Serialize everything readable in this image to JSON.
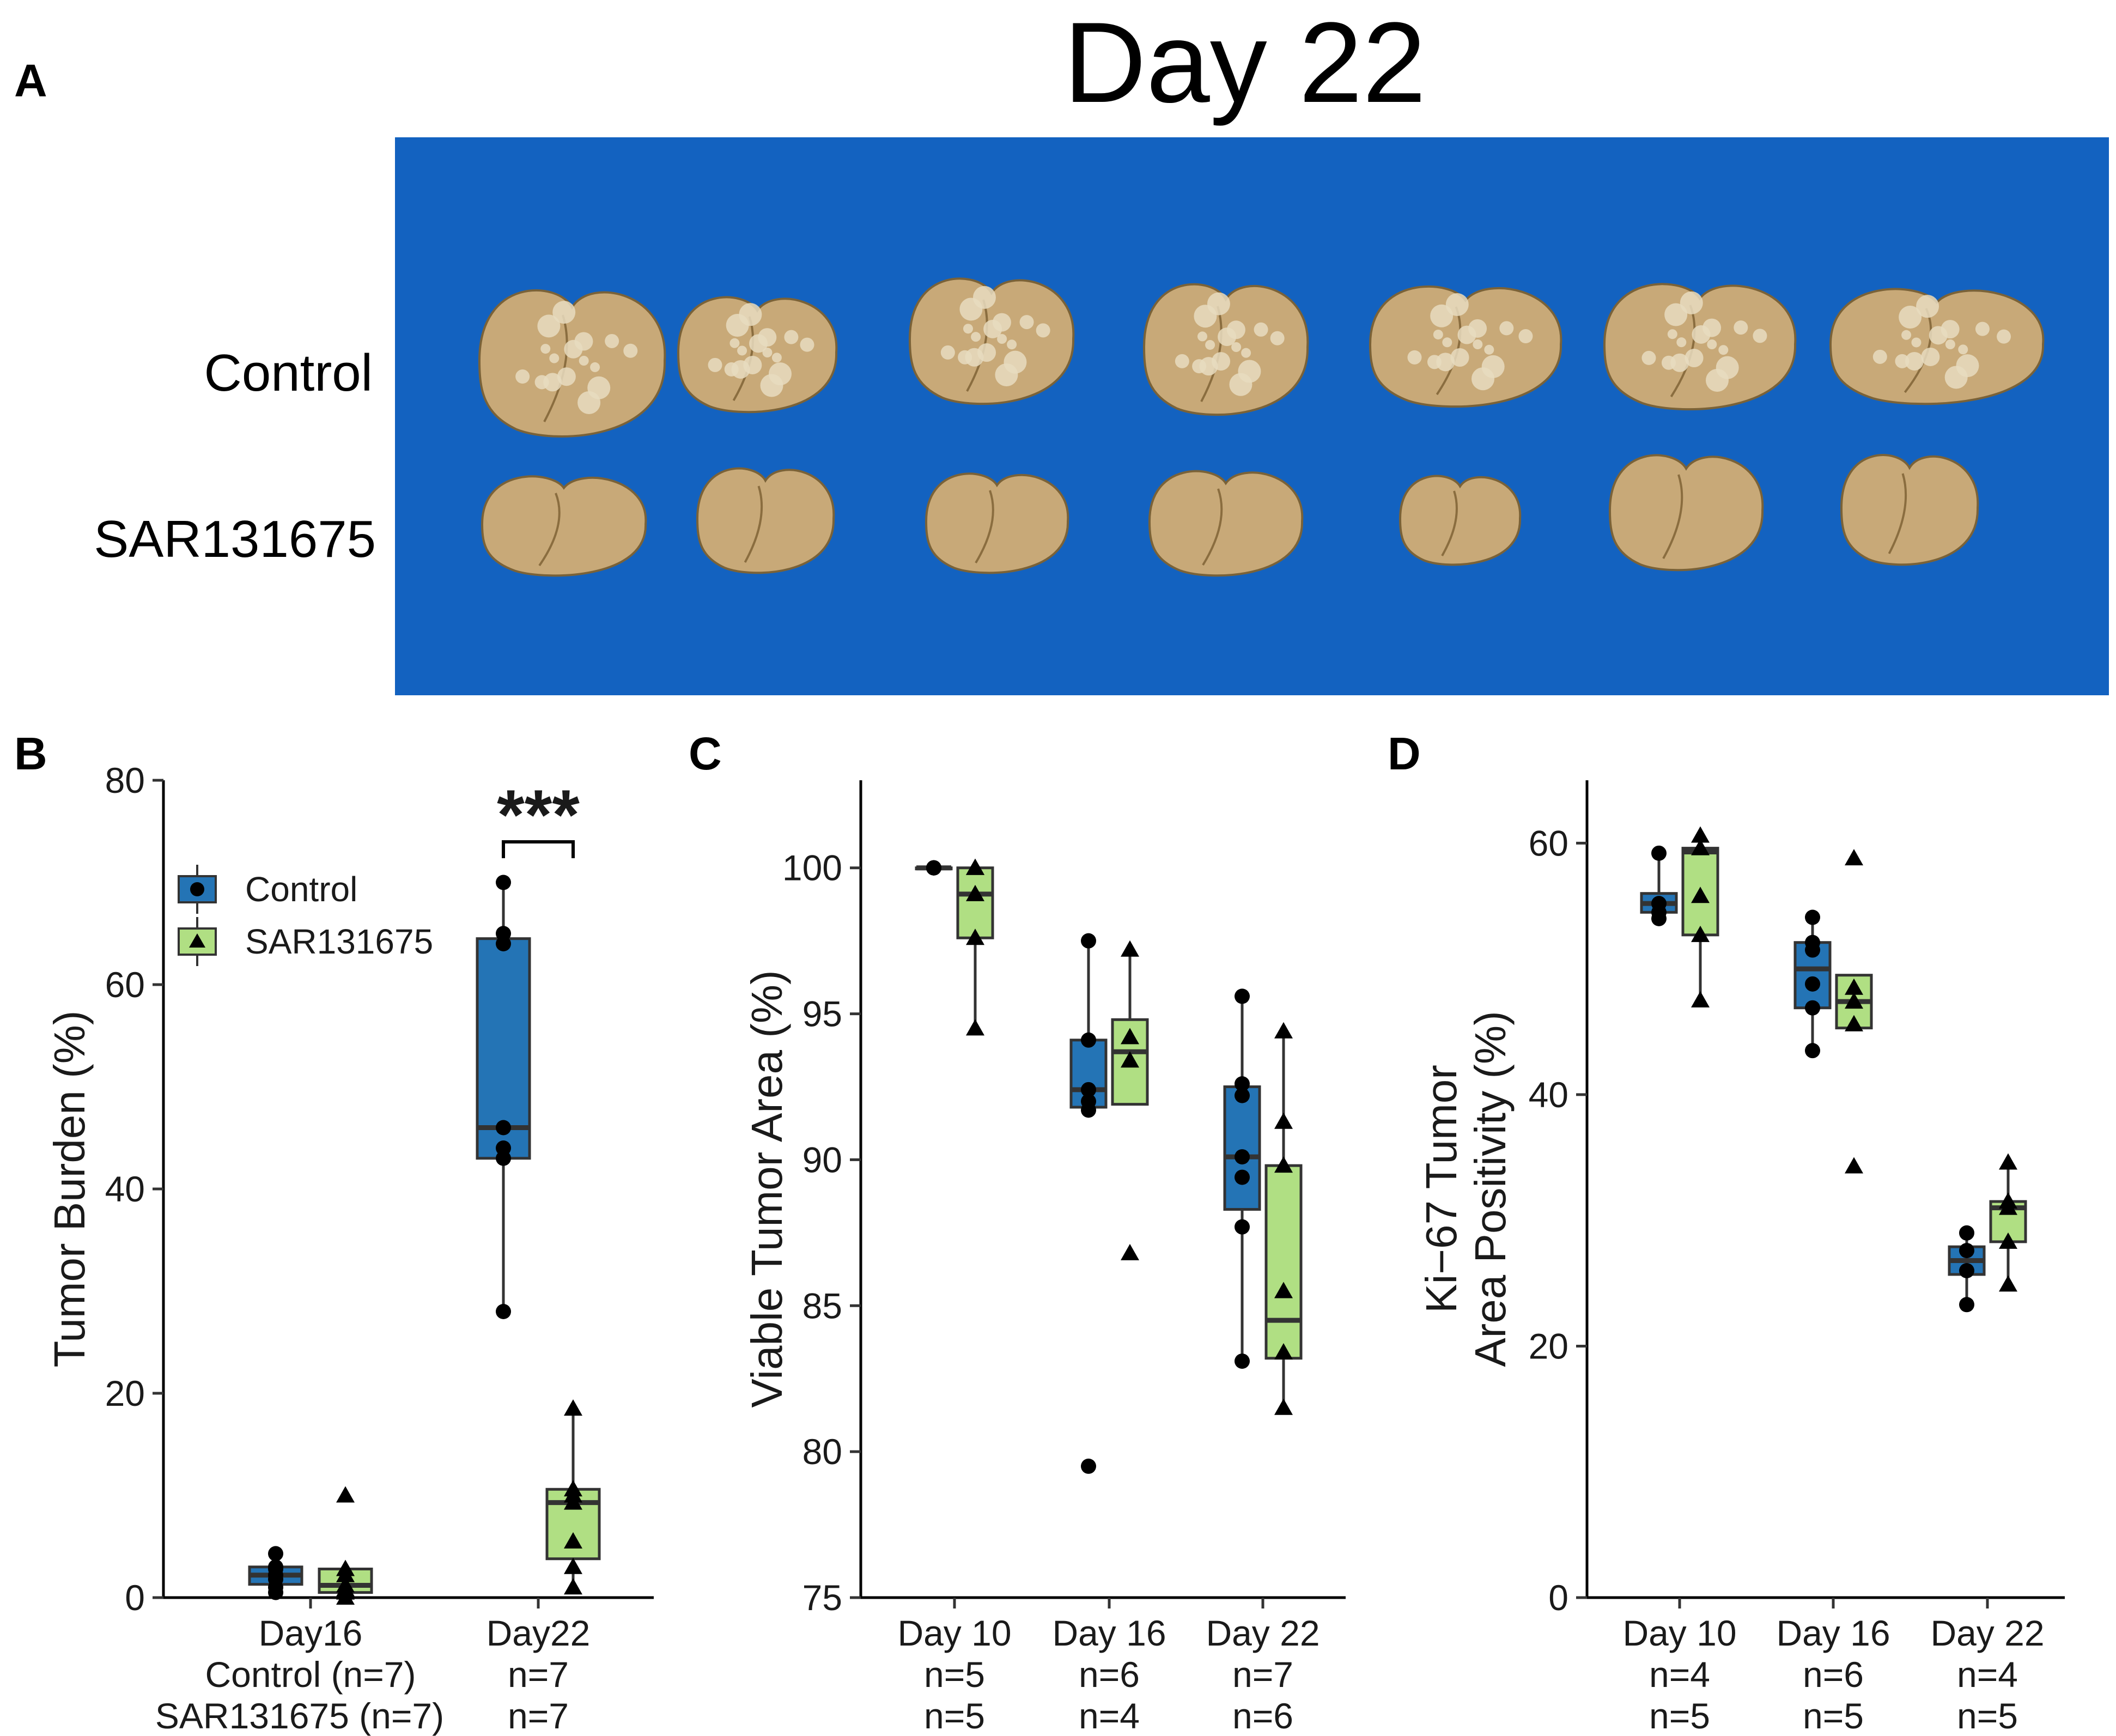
{
  "figure": {
    "title": "Day 22",
    "panel_labels": {
      "a": "A",
      "b": "B",
      "c": "C",
      "d": "D"
    },
    "photo_rows": [
      "Control",
      "SAR131675"
    ]
  },
  "colors": {
    "control": "#2474b5",
    "sar": "#b0df83",
    "photo_bg": "#1362c0",
    "liver": "#c8a978",
    "nodule": "#e7dcc0"
  },
  "chart_data": [
    {
      "type": "box",
      "panel": "B",
      "ylabel": "Tumor Burden (%)",
      "ylim": [
        0,
        80
      ],
      "yticks": [
        0,
        20,
        40,
        60,
        80
      ],
      "legend": {
        "placement": "top-left",
        "entries": [
          "Control",
          "SAR131675"
        ]
      },
      "groups": [
        "Day16",
        "Day22"
      ],
      "n_row_labels": [
        "Control (n=7)",
        "SAR131675 (n=7)"
      ],
      "n_labels": [
        [
          "n=7",
          "n=7"
        ]
      ],
      "annotation": "***",
      "series": [
        {
          "name": "Control",
          "marker": "circle",
          "boxes": [
            {
              "q1": 1.3,
              "median": 2.2,
              "q3": 3.0,
              "lo": 0.5,
              "hi": 4.3,
              "points": [
                0.5,
                1.0,
                1.8,
                2.2,
                2.8,
                3.0,
                4.3
              ]
            },
            {
              "q1": 43,
              "median": 46,
              "q3": 64.5,
              "lo": 28,
              "hi": 70,
              "points": [
                28,
                43,
                44,
                46,
                64,
                65,
                70
              ]
            }
          ]
        },
        {
          "name": "SAR131675",
          "marker": "triangle",
          "boxes": [
            {
              "q1": 0.5,
              "median": 1.2,
              "q3": 2.8,
              "lo": 0,
              "hi": 2.8,
              "points": [
                0,
                0.5,
                0.8,
                1.2,
                2.2,
                2.8,
                10.0
              ]
            },
            {
              "q1": 3.8,
              "median": 9.3,
              "q3": 10.6,
              "lo": 1,
              "hi": 18.5,
              "points": [
                1,
                3,
                5.5,
                9.3,
                10,
                10.6,
                18.5
              ]
            }
          ]
        }
      ]
    },
    {
      "type": "box",
      "panel": "C",
      "ylabel": "Viable Tumor Area (%)",
      "ylim": [
        75,
        103
      ],
      "yticks": [
        75,
        80,
        85,
        90,
        95,
        100
      ],
      "groups": [
        "Day 10",
        "Day 16",
        "Day 22"
      ],
      "n_labels": [
        [
          "n=5",
          "n=5"
        ],
        [
          "n=6",
          "n=4"
        ],
        [
          "n=7",
          "n=6"
        ]
      ],
      "series": [
        {
          "name": "Control",
          "marker": "circle",
          "boxes": [
            {
              "q1": 100,
              "median": 100,
              "q3": 100,
              "lo": 100,
              "hi": 100,
              "points": [
                100,
                100,
                100,
                100,
                100
              ]
            },
            {
              "q1": 91.8,
              "median": 92.4,
              "q3": 94.1,
              "lo": 91.8,
              "hi": 97.5,
              "points": [
                79.5,
                91.7,
                92.0,
                92.4,
                94.1,
                97.5
              ]
            },
            {
              "q1": 88.3,
              "median": 90.1,
              "q3": 92.5,
              "lo": 83.1,
              "hi": 95.6,
              "points": [
                83.1,
                87.7,
                89.4,
                90.1,
                92.2,
                92.6,
                95.6
              ]
            }
          ]
        },
        {
          "name": "SAR131675",
          "marker": "triangle",
          "boxes": [
            {
              "q1": 97.6,
              "median": 99.1,
              "q3": 100,
              "lo": 94.5,
              "hi": 100,
              "points": [
                94.5,
                97.6,
                99.1,
                100,
                100
              ]
            },
            {
              "q1": 91.9,
              "median": 93.7,
              "q3": 94.8,
              "lo": 91.9,
              "hi": 97.2,
              "points": [
                86.8,
                93.4,
                94.2,
                97.2
              ]
            },
            {
              "q1": 83.2,
              "median": 84.5,
              "q3": 89.8,
              "lo": 81.5,
              "hi": 94.4,
              "points": [
                81.5,
                83.4,
                85.5,
                89.8,
                91.3,
                94.4
              ]
            }
          ]
        }
      ]
    },
    {
      "type": "box",
      "panel": "D",
      "ylabel_lines": [
        "Ki−67 Tumor",
        "Area Positivity (%)"
      ],
      "ylim": [
        0,
        65
      ],
      "yticks": [
        0,
        20,
        40,
        60
      ],
      "groups": [
        "Day 10",
        "Day 16",
        "Day 22"
      ],
      "n_labels": [
        [
          "n=4",
          "n=5"
        ],
        [
          "n=6",
          "n=5"
        ],
        [
          "n=4",
          "n=5"
        ]
      ],
      "series": [
        {
          "name": "Control",
          "marker": "circle",
          "boxes": [
            {
              "q1": 54.5,
              "median": 55.2,
              "q3": 56.0,
              "lo": 54.0,
              "hi": 59.2,
              "points": [
                54.0,
                54.5,
                55.2,
                59.2
              ]
            },
            {
              "q1": 46.9,
              "median": 50.0,
              "q3": 52.1,
              "lo": 43.5,
              "hi": 54.1,
              "points": [
                43.5,
                46.9,
                48.8,
                51.5,
                52.1,
                54.1
              ]
            },
            {
              "q1": 25.7,
              "median": 26.8,
              "q3": 27.9,
              "lo": 23.3,
              "hi": 29.0,
              "points": [
                23.3,
                26.0,
                27.6,
                29.0
              ]
            }
          ]
        },
        {
          "name": "SAR131675",
          "marker": "triangle",
          "boxes": [
            {
              "q1": 52.7,
              "median": 59.3,
              "q3": 59.6,
              "lo": 47.5,
              "hi": 60.6,
              "points": [
                47.5,
                52.7,
                55.8,
                59.6,
                60.6
              ]
            },
            {
              "q1": 45.3,
              "median": 47.4,
              "q3": 49.5,
              "lo": 45.3,
              "hi": 49.5,
              "points": [
                34.3,
                45.6,
                47.4,
                48.5,
                58.8
              ]
            },
            {
              "q1": 28.3,
              "median": 31.0,
              "q3": 31.5,
              "lo": 24.9,
              "hi": 34.6,
              "points": [
                24.9,
                28.3,
                31.0,
                31.5,
                34.6
              ]
            }
          ]
        }
      ]
    }
  ]
}
